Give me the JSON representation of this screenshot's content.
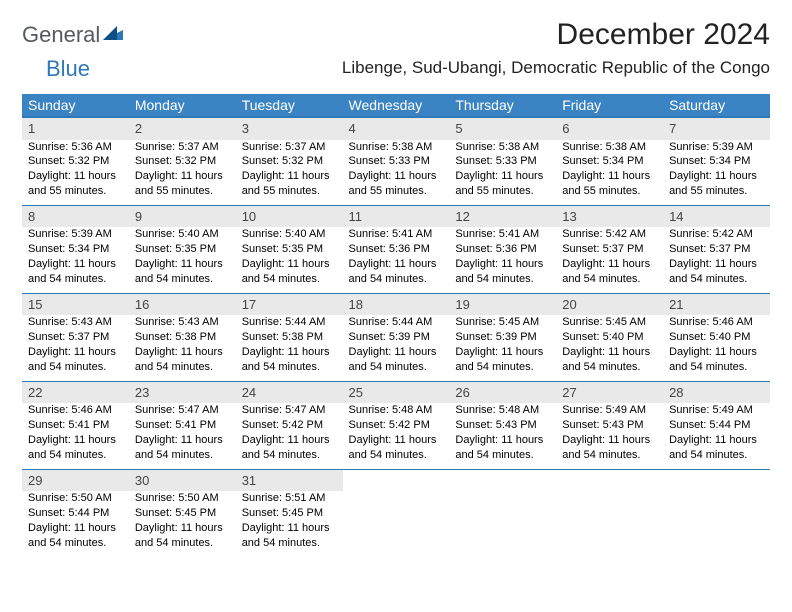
{
  "brand": {
    "general": "General",
    "blue": "Blue"
  },
  "title": "December 2024",
  "location": "Libenge, Sud-Ubangi, Democratic Republic of the Congo",
  "colors": {
    "header_bg": "#3a84c4",
    "header_border": "#2f78b7",
    "daynum_bg": "#e9e9e9",
    "logo_gray": "#555a5e",
    "logo_blue": "#2f78b7",
    "text": "#000000",
    "background": "#ffffff"
  },
  "weekdays": [
    "Sunday",
    "Monday",
    "Tuesday",
    "Wednesday",
    "Thursday",
    "Friday",
    "Saturday"
  ],
  "weeks": [
    [
      {
        "day": "1",
        "sunrise": "Sunrise: 5:36 AM",
        "sunset": "Sunset: 5:32 PM",
        "daylight": "Daylight: 11 hours and 55 minutes."
      },
      {
        "day": "2",
        "sunrise": "Sunrise: 5:37 AM",
        "sunset": "Sunset: 5:32 PM",
        "daylight": "Daylight: 11 hours and 55 minutes."
      },
      {
        "day": "3",
        "sunrise": "Sunrise: 5:37 AM",
        "sunset": "Sunset: 5:32 PM",
        "daylight": "Daylight: 11 hours and 55 minutes."
      },
      {
        "day": "4",
        "sunrise": "Sunrise: 5:38 AM",
        "sunset": "Sunset: 5:33 PM",
        "daylight": "Daylight: 11 hours and 55 minutes."
      },
      {
        "day": "5",
        "sunrise": "Sunrise: 5:38 AM",
        "sunset": "Sunset: 5:33 PM",
        "daylight": "Daylight: 11 hours and 55 minutes."
      },
      {
        "day": "6",
        "sunrise": "Sunrise: 5:38 AM",
        "sunset": "Sunset: 5:34 PM",
        "daylight": "Daylight: 11 hours and 55 minutes."
      },
      {
        "day": "7",
        "sunrise": "Sunrise: 5:39 AM",
        "sunset": "Sunset: 5:34 PM",
        "daylight": "Daylight: 11 hours and 55 minutes."
      }
    ],
    [
      {
        "day": "8",
        "sunrise": "Sunrise: 5:39 AM",
        "sunset": "Sunset: 5:34 PM",
        "daylight": "Daylight: 11 hours and 54 minutes."
      },
      {
        "day": "9",
        "sunrise": "Sunrise: 5:40 AM",
        "sunset": "Sunset: 5:35 PM",
        "daylight": "Daylight: 11 hours and 54 minutes."
      },
      {
        "day": "10",
        "sunrise": "Sunrise: 5:40 AM",
        "sunset": "Sunset: 5:35 PM",
        "daylight": "Daylight: 11 hours and 54 minutes."
      },
      {
        "day": "11",
        "sunrise": "Sunrise: 5:41 AM",
        "sunset": "Sunset: 5:36 PM",
        "daylight": "Daylight: 11 hours and 54 minutes."
      },
      {
        "day": "12",
        "sunrise": "Sunrise: 5:41 AM",
        "sunset": "Sunset: 5:36 PM",
        "daylight": "Daylight: 11 hours and 54 minutes."
      },
      {
        "day": "13",
        "sunrise": "Sunrise: 5:42 AM",
        "sunset": "Sunset: 5:37 PM",
        "daylight": "Daylight: 11 hours and 54 minutes."
      },
      {
        "day": "14",
        "sunrise": "Sunrise: 5:42 AM",
        "sunset": "Sunset: 5:37 PM",
        "daylight": "Daylight: 11 hours and 54 minutes."
      }
    ],
    [
      {
        "day": "15",
        "sunrise": "Sunrise: 5:43 AM",
        "sunset": "Sunset: 5:37 PM",
        "daylight": "Daylight: 11 hours and 54 minutes."
      },
      {
        "day": "16",
        "sunrise": "Sunrise: 5:43 AM",
        "sunset": "Sunset: 5:38 PM",
        "daylight": "Daylight: 11 hours and 54 minutes."
      },
      {
        "day": "17",
        "sunrise": "Sunrise: 5:44 AM",
        "sunset": "Sunset: 5:38 PM",
        "daylight": "Daylight: 11 hours and 54 minutes."
      },
      {
        "day": "18",
        "sunrise": "Sunrise: 5:44 AM",
        "sunset": "Sunset: 5:39 PM",
        "daylight": "Daylight: 11 hours and 54 minutes."
      },
      {
        "day": "19",
        "sunrise": "Sunrise: 5:45 AM",
        "sunset": "Sunset: 5:39 PM",
        "daylight": "Daylight: 11 hours and 54 minutes."
      },
      {
        "day": "20",
        "sunrise": "Sunrise: 5:45 AM",
        "sunset": "Sunset: 5:40 PM",
        "daylight": "Daylight: 11 hours and 54 minutes."
      },
      {
        "day": "21",
        "sunrise": "Sunrise: 5:46 AM",
        "sunset": "Sunset: 5:40 PM",
        "daylight": "Daylight: 11 hours and 54 minutes."
      }
    ],
    [
      {
        "day": "22",
        "sunrise": "Sunrise: 5:46 AM",
        "sunset": "Sunset: 5:41 PM",
        "daylight": "Daylight: 11 hours and 54 minutes."
      },
      {
        "day": "23",
        "sunrise": "Sunrise: 5:47 AM",
        "sunset": "Sunset: 5:41 PM",
        "daylight": "Daylight: 11 hours and 54 minutes."
      },
      {
        "day": "24",
        "sunrise": "Sunrise: 5:47 AM",
        "sunset": "Sunset: 5:42 PM",
        "daylight": "Daylight: 11 hours and 54 minutes."
      },
      {
        "day": "25",
        "sunrise": "Sunrise: 5:48 AM",
        "sunset": "Sunset: 5:42 PM",
        "daylight": "Daylight: 11 hours and 54 minutes."
      },
      {
        "day": "26",
        "sunrise": "Sunrise: 5:48 AM",
        "sunset": "Sunset: 5:43 PM",
        "daylight": "Daylight: 11 hours and 54 minutes."
      },
      {
        "day": "27",
        "sunrise": "Sunrise: 5:49 AM",
        "sunset": "Sunset: 5:43 PM",
        "daylight": "Daylight: 11 hours and 54 minutes."
      },
      {
        "day": "28",
        "sunrise": "Sunrise: 5:49 AM",
        "sunset": "Sunset: 5:44 PM",
        "daylight": "Daylight: 11 hours and 54 minutes."
      }
    ],
    [
      {
        "day": "29",
        "sunrise": "Sunrise: 5:50 AM",
        "sunset": "Sunset: 5:44 PM",
        "daylight": "Daylight: 11 hours and 54 minutes."
      },
      {
        "day": "30",
        "sunrise": "Sunrise: 5:50 AM",
        "sunset": "Sunset: 5:45 PM",
        "daylight": "Daylight: 11 hours and 54 minutes."
      },
      {
        "day": "31",
        "sunrise": "Sunrise: 5:51 AM",
        "sunset": "Sunset: 5:45 PM",
        "daylight": "Daylight: 11 hours and 54 minutes."
      },
      null,
      null,
      null,
      null
    ]
  ]
}
